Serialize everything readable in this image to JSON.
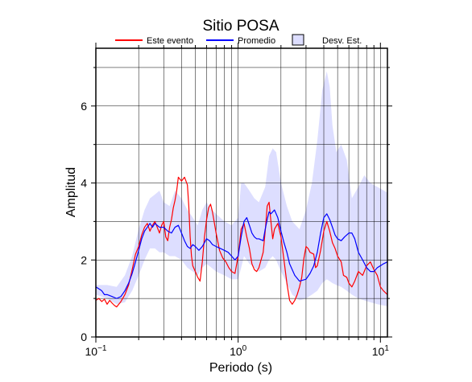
{
  "chart_data": {
    "type": "line",
    "title": "Sitio POSA",
    "xlabel": "Periodo (s)",
    "ylabel": "Amplitud",
    "x_scale": "log",
    "xlim": [
      0.1,
      11.2
    ],
    "ylim": [
      0,
      7.5
    ],
    "x_ticks": [
      {
        "value": 0.1,
        "base": "10",
        "exp": "−1"
      },
      {
        "value": 1,
        "base": "10",
        "exp": "0"
      },
      {
        "value": 10,
        "base": "10",
        "exp": "1"
      }
    ],
    "y_ticks": [
      0,
      2,
      4,
      6
    ],
    "y_tick_labels": [
      "0",
      "2",
      "4",
      "6"
    ],
    "grid": true,
    "legend_position": "top",
    "series": [
      {
        "name": "Este evento",
        "color": "#ff0000",
        "points": [
          [
            0.1,
            0.95
          ],
          [
            0.105,
            1.0
          ],
          [
            0.11,
            0.92
          ],
          [
            0.115,
            0.98
          ],
          [
            0.12,
            0.85
          ],
          [
            0.125,
            0.95
          ],
          [
            0.13,
            0.88
          ],
          [
            0.135,
            0.82
          ],
          [
            0.14,
            0.78
          ],
          [
            0.15,
            0.92
          ],
          [
            0.16,
            1.1
          ],
          [
            0.17,
            1.35
          ],
          [
            0.18,
            1.75
          ],
          [
            0.19,
            2.15
          ],
          [
            0.2,
            2.35
          ],
          [
            0.21,
            2.65
          ],
          [
            0.22,
            2.85
          ],
          [
            0.23,
            2.95
          ],
          [
            0.24,
            2.75
          ],
          [
            0.25,
            2.9
          ],
          [
            0.26,
            3.0
          ],
          [
            0.27,
            2.85
          ],
          [
            0.28,
            2.7
          ],
          [
            0.29,
            2.9
          ],
          [
            0.3,
            3.0
          ],
          [
            0.31,
            2.6
          ],
          [
            0.32,
            2.5
          ],
          [
            0.33,
            2.85
          ],
          [
            0.34,
            3.05
          ],
          [
            0.35,
            3.35
          ],
          [
            0.36,
            3.55
          ],
          [
            0.37,
            3.8
          ],
          [
            0.38,
            4.15
          ],
          [
            0.39,
            4.1
          ],
          [
            0.4,
            4.05
          ],
          [
            0.42,
            4.15
          ],
          [
            0.44,
            3.95
          ],
          [
            0.45,
            3.4
          ],
          [
            0.46,
            2.6
          ],
          [
            0.47,
            2.1
          ],
          [
            0.48,
            1.85
          ],
          [
            0.5,
            1.7
          ],
          [
            0.52,
            1.55
          ],
          [
            0.54,
            1.45
          ],
          [
            0.56,
            1.95
          ],
          [
            0.58,
            2.6
          ],
          [
            0.6,
            3.05
          ],
          [
            0.62,
            3.35
          ],
          [
            0.64,
            3.45
          ],
          [
            0.66,
            3.25
          ],
          [
            0.7,
            2.7
          ],
          [
            0.74,
            2.25
          ],
          [
            0.78,
            2.05
          ],
          [
            0.82,
            1.95
          ],
          [
            0.86,
            1.8
          ],
          [
            0.9,
            1.7
          ],
          [
            0.95,
            1.65
          ],
          [
            1.0,
            2.1
          ],
          [
            1.05,
            2.8
          ],
          [
            1.1,
            2.95
          ],
          [
            1.15,
            2.6
          ],
          [
            1.2,
            2.3
          ],
          [
            1.25,
            1.9
          ],
          [
            1.3,
            1.75
          ],
          [
            1.35,
            1.7
          ],
          [
            1.4,
            1.8
          ],
          [
            1.5,
            2.2
          ],
          [
            1.55,
            2.75
          ],
          [
            1.6,
            3.4
          ],
          [
            1.65,
            3.5
          ],
          [
            1.7,
            3.0
          ],
          [
            1.75,
            2.55
          ],
          [
            1.8,
            2.8
          ],
          [
            1.9,
            2.95
          ],
          [
            2.0,
            2.6
          ],
          [
            2.1,
            2.0
          ],
          [
            2.2,
            1.4
          ],
          [
            2.3,
            0.95
          ],
          [
            2.4,
            0.85
          ],
          [
            2.5,
            0.95
          ],
          [
            2.6,
            1.1
          ],
          [
            2.7,
            1.3
          ],
          [
            2.8,
            1.55
          ],
          [
            2.9,
            2.05
          ],
          [
            3.0,
            2.35
          ],
          [
            3.1,
            2.3
          ],
          [
            3.2,
            2.2
          ],
          [
            3.4,
            2.15
          ],
          [
            3.5,
            1.8
          ],
          [
            3.6,
            1.85
          ],
          [
            3.8,
            2.25
          ],
          [
            4.0,
            2.75
          ],
          [
            4.2,
            3.0
          ],
          [
            4.4,
            2.75
          ],
          [
            4.6,
            2.45
          ],
          [
            4.8,
            2.3
          ],
          [
            5.0,
            2.1
          ],
          [
            5.3,
            1.95
          ],
          [
            5.5,
            1.6
          ],
          [
            5.8,
            1.55
          ],
          [
            6.0,
            1.4
          ],
          [
            6.3,
            1.3
          ],
          [
            6.6,
            1.45
          ],
          [
            7.0,
            1.7
          ],
          [
            7.5,
            1.6
          ],
          [
            8.0,
            1.85
          ],
          [
            8.5,
            1.95
          ],
          [
            9.0,
            1.75
          ],
          [
            9.5,
            1.6
          ],
          [
            10.0,
            1.3
          ],
          [
            10.5,
            1.2
          ],
          [
            11.2,
            1.1
          ]
        ]
      },
      {
        "name": "Promedio",
        "color": "#0000ff",
        "points": [
          [
            0.1,
            1.3
          ],
          [
            0.105,
            1.25
          ],
          [
            0.11,
            1.2
          ],
          [
            0.115,
            1.1
          ],
          [
            0.12,
            1.1
          ],
          [
            0.13,
            1.05
          ],
          [
            0.14,
            1.0
          ],
          [
            0.15,
            1.05
          ],
          [
            0.16,
            1.2
          ],
          [
            0.17,
            1.4
          ],
          [
            0.18,
            1.65
          ],
          [
            0.19,
            1.95
          ],
          [
            0.2,
            2.25
          ],
          [
            0.21,
            2.55
          ],
          [
            0.22,
            2.75
          ],
          [
            0.23,
            2.85
          ],
          [
            0.24,
            2.95
          ],
          [
            0.25,
            2.85
          ],
          [
            0.26,
            2.95
          ],
          [
            0.27,
            2.9
          ],
          [
            0.28,
            2.85
          ],
          [
            0.3,
            2.85
          ],
          [
            0.32,
            2.75
          ],
          [
            0.34,
            2.7
          ],
          [
            0.36,
            2.85
          ],
          [
            0.38,
            2.9
          ],
          [
            0.4,
            2.7
          ],
          [
            0.42,
            2.5
          ],
          [
            0.44,
            2.35
          ],
          [
            0.46,
            2.3
          ],
          [
            0.48,
            2.4
          ],
          [
            0.5,
            2.35
          ],
          [
            0.53,
            2.25
          ],
          [
            0.56,
            2.35
          ],
          [
            0.6,
            2.55
          ],
          [
            0.63,
            2.5
          ],
          [
            0.66,
            2.4
          ],
          [
            0.7,
            2.35
          ],
          [
            0.75,
            2.3
          ],
          [
            0.8,
            2.25
          ],
          [
            0.85,
            2.2
          ],
          [
            0.9,
            2.1
          ],
          [
            0.95,
            2.0
          ],
          [
            1.0,
            2.1
          ],
          [
            1.05,
            2.6
          ],
          [
            1.1,
            3.0
          ],
          [
            1.15,
            3.1
          ],
          [
            1.2,
            2.9
          ],
          [
            1.25,
            2.7
          ],
          [
            1.3,
            2.6
          ],
          [
            1.35,
            2.55
          ],
          [
            1.4,
            2.55
          ],
          [
            1.5,
            2.5
          ],
          [
            1.55,
            2.8
          ],
          [
            1.6,
            3.05
          ],
          [
            1.65,
            3.25
          ],
          [
            1.7,
            3.2
          ],
          [
            1.8,
            3.3
          ],
          [
            1.9,
            3.1
          ],
          [
            2.0,
            2.75
          ],
          [
            2.1,
            2.45
          ],
          [
            2.2,
            2.2
          ],
          [
            2.3,
            1.9
          ],
          [
            2.5,
            1.6
          ],
          [
            2.7,
            1.45
          ],
          [
            3.0,
            1.5
          ],
          [
            3.2,
            1.65
          ],
          [
            3.4,
            1.85
          ],
          [
            3.6,
            2.2
          ],
          [
            3.8,
            2.7
          ],
          [
            4.0,
            3.1
          ],
          [
            4.2,
            3.2
          ],
          [
            4.4,
            3.05
          ],
          [
            4.6,
            2.85
          ],
          [
            4.8,
            2.65
          ],
          [
            5.0,
            2.55
          ],
          [
            5.3,
            2.5
          ],
          [
            5.6,
            2.6
          ],
          [
            6.0,
            2.7
          ],
          [
            6.3,
            2.7
          ],
          [
            6.6,
            2.55
          ],
          [
            7.0,
            2.2
          ],
          [
            7.5,
            2.0
          ],
          [
            8.0,
            1.8
          ],
          [
            8.5,
            1.7
          ],
          [
            9.0,
            1.7
          ],
          [
            9.5,
            1.8
          ],
          [
            10.0,
            1.85
          ],
          [
            10.5,
            1.9
          ],
          [
            11.2,
            1.95
          ]
        ]
      },
      {
        "name": "Desv. Est.",
        "color": "#dddeff",
        "kind": "band",
        "upper": [
          [
            0.1,
            1.35
          ],
          [
            0.12,
            1.35
          ],
          [
            0.14,
            1.3
          ],
          [
            0.16,
            1.6
          ],
          [
            0.18,
            2.1
          ],
          [
            0.2,
            2.8
          ],
          [
            0.22,
            3.3
          ],
          [
            0.24,
            3.6
          ],
          [
            0.26,
            3.7
          ],
          [
            0.28,
            3.8
          ],
          [
            0.3,
            3.5
          ],
          [
            0.33,
            3.4
          ],
          [
            0.36,
            3.8
          ],
          [
            0.4,
            3.6
          ],
          [
            0.44,
            3.3
          ],
          [
            0.48,
            3.1
          ],
          [
            0.52,
            2.9
          ],
          [
            0.56,
            3.3
          ],
          [
            0.6,
            3.5
          ],
          [
            0.65,
            3.3
          ],
          [
            0.7,
            3.2
          ],
          [
            0.8,
            3.0
          ],
          [
            0.9,
            2.9
          ],
          [
            1.0,
            3.1
          ],
          [
            1.05,
            4.0
          ],
          [
            1.1,
            4.0
          ],
          [
            1.2,
            3.8
          ],
          [
            1.3,
            3.6
          ],
          [
            1.4,
            3.5
          ],
          [
            1.55,
            3.9
          ],
          [
            1.65,
            4.7
          ],
          [
            1.75,
            4.9
          ],
          [
            1.85,
            4.8
          ],
          [
            2.0,
            4.0
          ],
          [
            2.2,
            3.4
          ],
          [
            2.4,
            3.0
          ],
          [
            2.7,
            2.8
          ],
          [
            3.0,
            3.3
          ],
          [
            3.3,
            4.0
          ],
          [
            3.6,
            5.1
          ],
          [
            3.9,
            6.4
          ],
          [
            4.2,
            6.9
          ],
          [
            4.4,
            6.5
          ],
          [
            4.6,
            5.5
          ],
          [
            4.9,
            4.8
          ],
          [
            5.3,
            5.0
          ],
          [
            5.8,
            4.6
          ],
          [
            6.3,
            3.6
          ],
          [
            7.0,
            3.9
          ],
          [
            7.7,
            4.2
          ],
          [
            8.5,
            4.0
          ],
          [
            9.5,
            3.9
          ],
          [
            11.2,
            3.75
          ]
        ],
        "lower": [
          [
            0.1,
            1.1
          ],
          [
            0.12,
            1.0
          ],
          [
            0.14,
            0.85
          ],
          [
            0.16,
            0.9
          ],
          [
            0.18,
            1.2
          ],
          [
            0.2,
            1.6
          ],
          [
            0.22,
            2.0
          ],
          [
            0.24,
            2.3
          ],
          [
            0.26,
            2.3
          ],
          [
            0.28,
            2.2
          ],
          [
            0.3,
            2.2
          ],
          [
            0.33,
            2.1
          ],
          [
            0.36,
            2.1
          ],
          [
            0.4,
            2.0
          ],
          [
            0.44,
            1.8
          ],
          [
            0.48,
            1.7
          ],
          [
            0.52,
            1.6
          ],
          [
            0.56,
            1.8
          ],
          [
            0.6,
            1.9
          ],
          [
            0.65,
            1.8
          ],
          [
            0.7,
            1.7
          ],
          [
            0.8,
            1.6
          ],
          [
            0.9,
            1.5
          ],
          [
            1.0,
            1.5
          ],
          [
            1.05,
            1.8
          ],
          [
            1.1,
            2.1
          ],
          [
            1.2,
            1.9
          ],
          [
            1.3,
            1.8
          ],
          [
            1.4,
            1.7
          ],
          [
            1.55,
            1.8
          ],
          [
            1.65,
            2.0
          ],
          [
            1.75,
            2.1
          ],
          [
            1.85,
            2.0
          ],
          [
            2.0,
            1.7
          ],
          [
            2.2,
            1.4
          ],
          [
            2.4,
            1.1
          ],
          [
            2.7,
            0.95
          ],
          [
            3.0,
            1.0
          ],
          [
            3.3,
            1.1
          ],
          [
            3.6,
            1.2
          ],
          [
            3.9,
            1.4
          ],
          [
            4.2,
            1.5
          ],
          [
            4.4,
            1.45
          ],
          [
            4.6,
            1.4
          ],
          [
            4.9,
            1.35
          ],
          [
            5.3,
            1.3
          ],
          [
            5.8,
            1.2
          ],
          [
            6.3,
            1.1
          ],
          [
            7.0,
            1.0
          ],
          [
            7.7,
            0.95
          ],
          [
            8.5,
            0.9
          ],
          [
            9.5,
            0.85
          ],
          [
            11.2,
            0.8
          ]
        ]
      }
    ]
  }
}
